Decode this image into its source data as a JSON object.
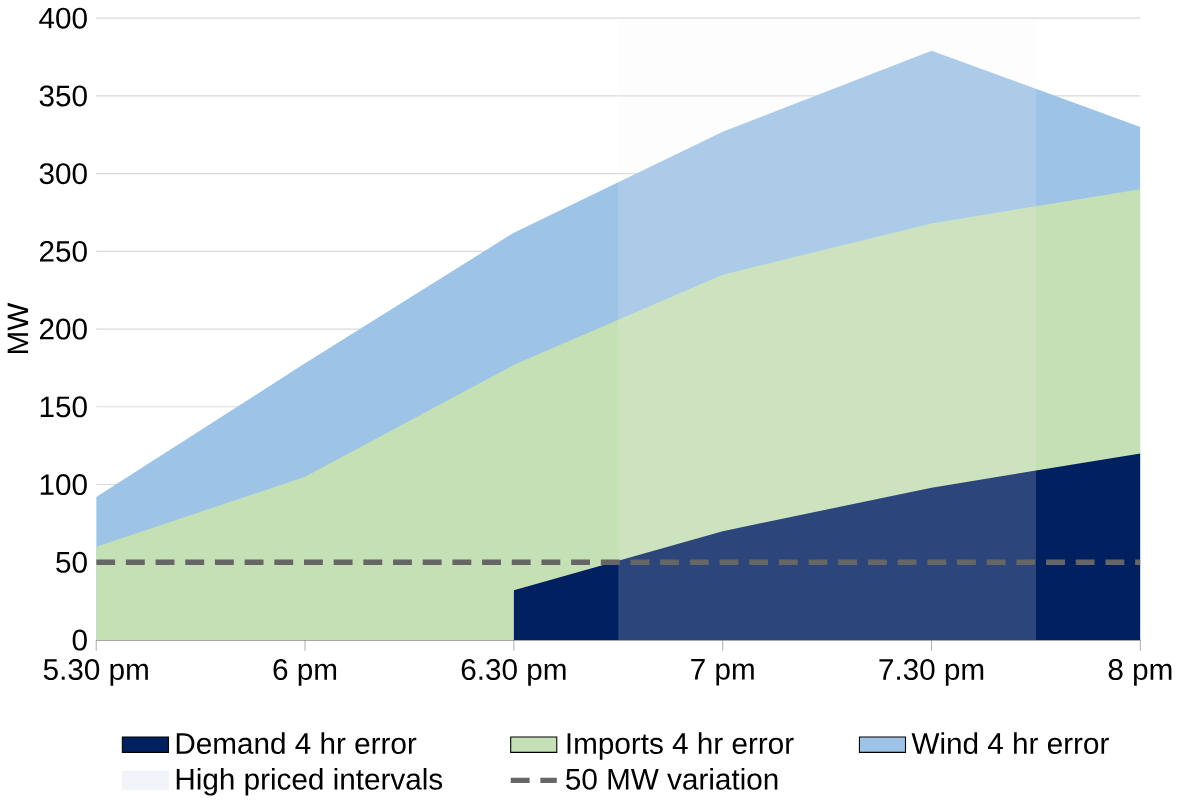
{
  "chart_data": {
    "type": "area",
    "ylabel": "MW",
    "categories": [
      "5.30 pm",
      "6 pm",
      "6.30 pm",
      "7 pm",
      "7.30 pm",
      "8 pm"
    ],
    "ylim": [
      0,
      400
    ],
    "yticks": [
      0,
      50,
      100,
      150,
      200,
      250,
      300,
      350,
      400
    ],
    "grid": "y",
    "legend": "bottom",
    "series": [
      {
        "name": "Demand 4 hr error",
        "color": "#002060",
        "values": [
          null,
          null,
          32,
          70,
          98,
          120
        ]
      },
      {
        "name": "Imports 4 hr error",
        "color": "#c5e0b4",
        "values": [
          60,
          105,
          177,
          235,
          268,
          290
        ]
      },
      {
        "name": "Wind 4 hr error",
        "color": "#9dc3e6",
        "values": [
          92,
          178,
          262,
          327,
          379,
          330
        ]
      }
    ],
    "annotations": [
      "High priced intervals"
    ],
    "ref_lines": [
      {
        "axis": "y",
        "value": 50,
        "label": "50 MW variation",
        "color": "#666666",
        "line_style": "dashed"
      }
    ]
  }
}
